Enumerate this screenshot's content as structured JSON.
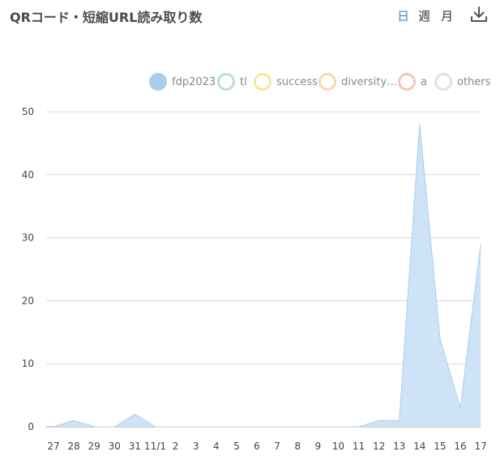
{
  "header": {
    "title": "QRコード・短縮URL読み取り数",
    "periods": {
      "day": "日",
      "week": "週",
      "month": "月"
    },
    "active_period": "day",
    "download_icon": "download-icon"
  },
  "colors": {
    "accent": "#2f8fd6",
    "area_fill": "#cfe3f6",
    "area_stroke": "#a9cdee",
    "grid": "#d8d8d8"
  },
  "legend": [
    {
      "label": "fdp2023",
      "ring": "#a9cdee",
      "fill": "#a9cdee"
    },
    {
      "label": "tl",
      "ring": "#b9dfd9",
      "fill": "#ffffff"
    },
    {
      "label": "success",
      "ring": "#f6e7a0",
      "fill": "#ffffff"
    },
    {
      "label": "diversity…",
      "ring": "#f6d9b0",
      "fill": "#ffffff"
    },
    {
      "label": "a",
      "ring": "#f4c7b4",
      "fill": "#ffffff"
    },
    {
      "label": "others",
      "ring": "#e2e2e2",
      "fill": "#ffffff"
    }
  ],
  "chart_data": {
    "type": "area",
    "title": "",
    "xlabel": "",
    "ylabel": "",
    "categories": [
      "27",
      "28",
      "29",
      "30",
      "31",
      "11/1",
      "2",
      "3",
      "4",
      "5",
      "6",
      "7",
      "8",
      "9",
      "10",
      "11",
      "12",
      "13",
      "14",
      "15",
      "16",
      "17"
    ],
    "series": [
      {
        "name": "fdp2023",
        "values": [
          0,
          1,
          0,
          0,
          2,
          0,
          0,
          0,
          0,
          0,
          0,
          0,
          0,
          0,
          0,
          0,
          1,
          1,
          48,
          14,
          3,
          29
        ]
      }
    ],
    "yticks": [
      0,
      10,
      20,
      30,
      40,
      50
    ],
    "ylim": [
      0,
      50
    ],
    "grid": true,
    "legend_position": "top-right"
  }
}
